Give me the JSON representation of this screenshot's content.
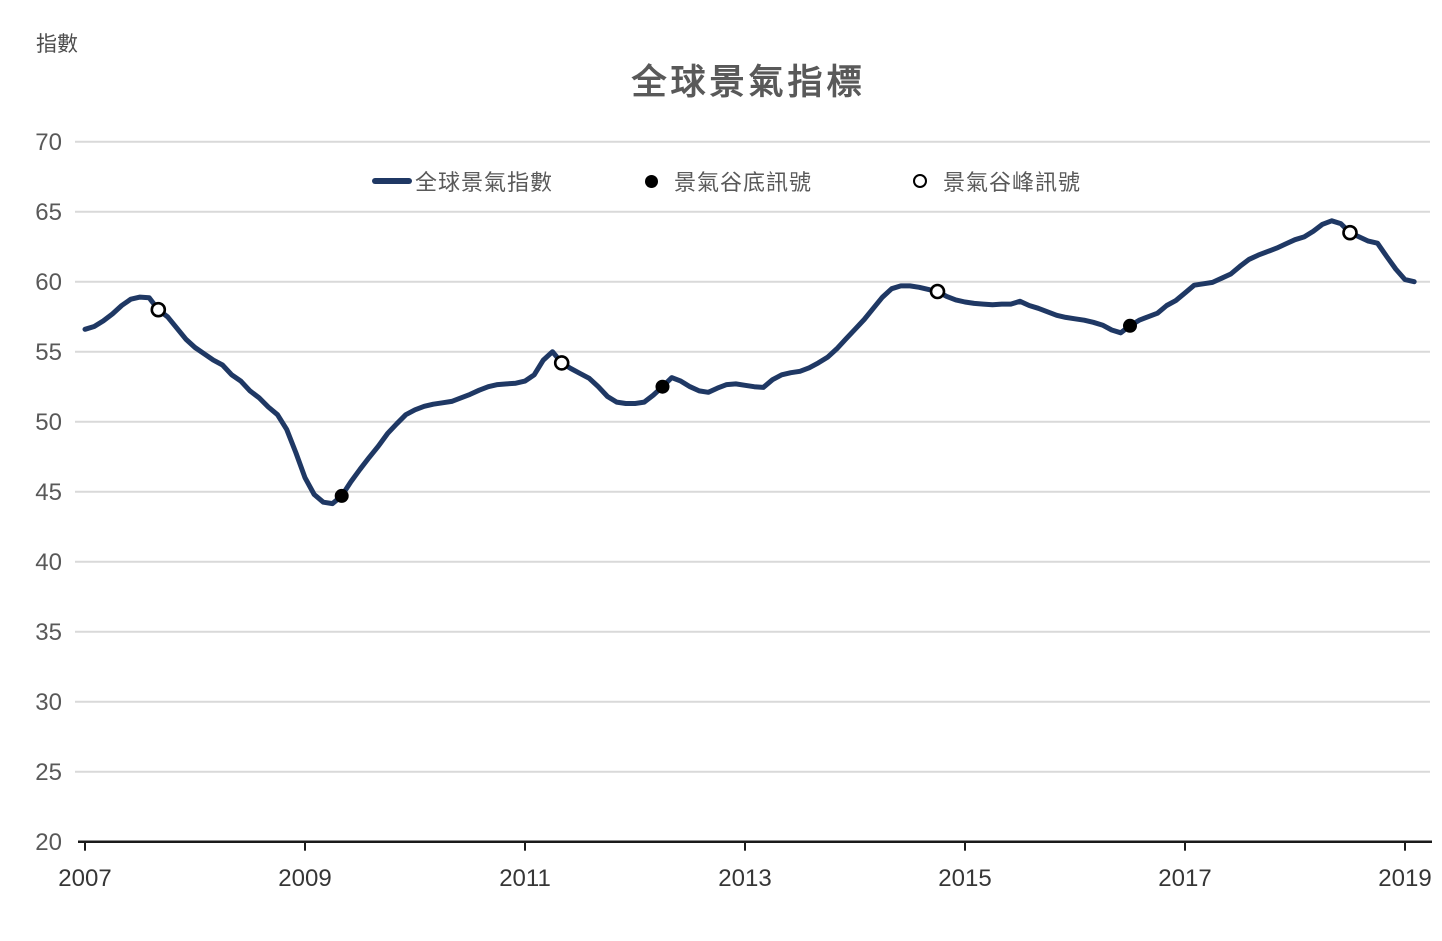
{
  "page": {
    "background": "#ffffff"
  },
  "header": {
    "y_axis_unit_label": "指數",
    "title": "全球景氣指標"
  },
  "legend": {
    "items": [
      {
        "label": "全球景氣指數",
        "swatch": "line"
      },
      {
        "label": "景氣谷底訊號",
        "swatch": "filled-black-dot"
      },
      {
        "label": "景氣谷峰訊號",
        "swatch": "open-circle"
      }
    ]
  },
  "chart_data": {
    "type": "line",
    "title": "全球景氣指標",
    "xlabel": "",
    "ylabel": "指數",
    "ylim": [
      20,
      70
    ],
    "y_ticks": [
      20,
      25,
      30,
      35,
      40,
      45,
      50,
      55,
      60,
      65,
      70
    ],
    "x_tick_years": [
      2007,
      2009,
      2011,
      2013,
      2015,
      2017,
      2019
    ],
    "grid": "horizontal-only",
    "legend_position": "top-inside",
    "series": [
      {
        "name": "全球景氣指數",
        "color": "#1f3864",
        "start": "2007-01",
        "frequency": "monthly",
        "values": [
          56.6,
          56.8,
          57.2,
          57.7,
          58.3,
          58.75,
          58.9,
          58.85,
          58.0,
          57.5,
          56.7,
          55.9,
          55.3,
          54.85,
          54.4,
          54.05,
          53.35,
          52.9,
          52.2,
          51.7,
          51.05,
          50.5,
          49.45,
          47.8,
          46.0,
          44.8,
          44.25,
          44.15,
          44.7,
          45.7,
          46.6,
          47.45,
          48.25,
          49.15,
          49.85,
          50.5,
          50.85,
          51.1,
          51.25,
          51.35,
          51.45,
          51.7,
          51.95,
          52.25,
          52.5,
          52.65,
          52.7,
          52.75,
          52.9,
          53.35,
          54.4,
          55.0,
          54.2,
          53.8,
          53.45,
          53.1,
          52.5,
          51.8,
          51.4,
          51.3,
          51.3,
          51.4,
          51.9,
          52.5,
          53.15,
          52.9,
          52.5,
          52.2,
          52.1,
          52.4,
          52.65,
          52.7,
          52.6,
          52.5,
          52.45,
          53.0,
          53.35,
          53.5,
          53.6,
          53.85,
          54.2,
          54.6,
          55.2,
          55.9,
          56.6,
          57.3,
          58.1,
          58.9,
          59.5,
          59.7,
          59.7,
          59.6,
          59.45,
          59.3,
          58.95,
          58.7,
          58.55,
          58.45,
          58.4,
          58.35,
          58.4,
          58.4,
          58.6,
          58.3,
          58.1,
          57.85,
          57.6,
          57.45,
          57.35,
          57.25,
          57.1,
          56.9,
          56.55,
          56.35,
          56.85,
          57.25,
          57.5,
          57.75,
          58.3,
          58.65,
          59.2,
          59.75,
          59.85,
          59.95,
          60.25,
          60.55,
          61.1,
          61.6,
          61.9,
          62.15,
          62.4,
          62.7,
          63.0,
          63.2,
          63.6,
          64.1,
          64.35,
          64.15,
          63.5,
          63.2,
          62.9,
          62.75,
          61.8,
          60.9,
          60.15,
          60.0
        ]
      }
    ],
    "markers": [
      {
        "name": "景氣谷底訊號",
        "style": "filled-black-dot",
        "points": [
          {
            "date": "2009-05",
            "value": 44.7
          },
          {
            "date": "2012-04",
            "value": 52.5
          },
          {
            "date": "2016-07",
            "value": 56.85
          }
        ]
      },
      {
        "name": "景氣谷峰訊號",
        "style": "open-circle",
        "points": [
          {
            "date": "2007-09",
            "value": 58.0
          },
          {
            "date": "2011-05",
            "value": 54.2
          },
          {
            "date": "2014-10",
            "value": 59.3
          },
          {
            "date": "2018-07",
            "value": 63.5
          }
        ]
      }
    ],
    "colors": {
      "line": "#1f3864",
      "grid": "#d9d9d9",
      "axis": "#1a1a1a",
      "x_tick_label": "#363636",
      "y_tick_label": "#595959",
      "title": "#595959",
      "legend_text": "#595959",
      "marker_fill": "#000000",
      "marker_open_fill": "#ffffff"
    }
  }
}
